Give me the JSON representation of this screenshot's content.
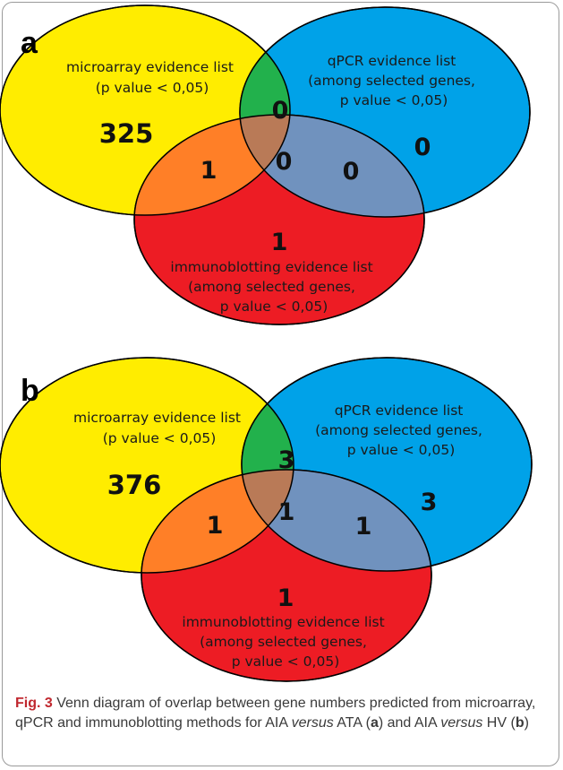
{
  "colors": {
    "microarray": "#ffed00",
    "qpcr": "#00a2e8",
    "immunoblotting": "#ed1c24",
    "micro_qpcr": "#22b14c",
    "micro_immuno": "#ff7f27",
    "qpcr_immuno": "#7092be",
    "all_three": "#b97a57",
    "fig_label": "#c0282f"
  },
  "panels": [
    {
      "letter": "a",
      "microarray_label": [
        "microarray evidence list",
        "(p value < 0,05)"
      ],
      "qpcr_label": [
        "qPCR evidence list",
        "(among selected genes,",
        "p value < 0,05)"
      ],
      "immuno_label": [
        "immunoblotting evidence list",
        "(among selected genes,",
        "p value < 0,05)"
      ],
      "counts": {
        "microarray_only": "325",
        "qpcr_only": "0",
        "immuno_only": "1",
        "micro_qpcr": "0",
        "micro_immuno": "1",
        "qpcr_immuno": "0",
        "all_three": "0"
      }
    },
    {
      "letter": "b",
      "microarray_label": [
        "microarray evidence list",
        "(p value < 0,05)"
      ],
      "qpcr_label": [
        "qPCR evidence list",
        "(among selected genes,",
        "p value < 0,05)"
      ],
      "immuno_label": [
        "immunoblotting evidence list",
        "(among selected genes,",
        "p value < 0,05)"
      ],
      "counts": {
        "microarray_only": "376",
        "qpcr_only": "3",
        "immuno_only": "1",
        "micro_qpcr": "3",
        "micro_immuno": "1",
        "qpcr_immuno": "1",
        "all_three": "1"
      }
    }
  ],
  "caption": {
    "label": "Fig. 3",
    "t1": " Venn diagram of overlap between gene numbers predicted from microarray, qPCR and immunoblotting methods for AIA ",
    "versus1": "versus",
    "t2": " ATA (",
    "a": "a",
    "t3": ") and AIA ",
    "versus2": "versus",
    "t4": " HV (",
    "b": "b",
    "t5": ")"
  }
}
